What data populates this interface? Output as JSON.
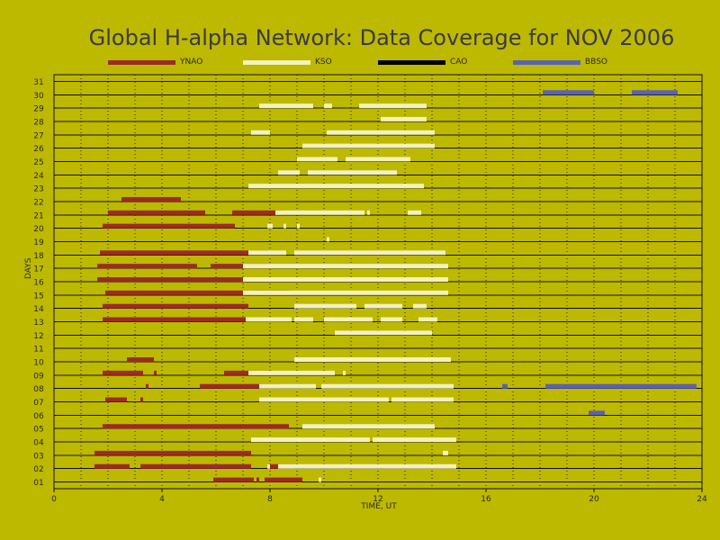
{
  "chart_data": {
    "type": "timeline",
    "title": "Global H-alpha Network: Data Coverage for NOV 2006",
    "xlabel": "TIME, UT",
    "ylabel": "DAYS",
    "xlim": [
      0,
      24
    ],
    "ylim": [
      0.5,
      31.5
    ],
    "xticks": [
      0,
      4,
      8,
      12,
      16,
      20,
      24
    ],
    "day_labels": [
      "01",
      "02",
      "03",
      "04",
      "05",
      "06",
      "07",
      "08",
      "09",
      "10",
      "11",
      "12",
      "13",
      "14",
      "15",
      "16",
      "17",
      "18",
      "19",
      "20",
      "21",
      "22",
      "23",
      "24",
      "25",
      "26",
      "27",
      "28",
      "29",
      "30",
      "31"
    ],
    "grid": true,
    "legend_placement": "top",
    "series": [
      {
        "name": "YNAO",
        "color": "#9e2a26",
        "segments": [
          [
            1,
            5.9,
            7.4
          ],
          [
            1,
            7.5,
            7.6
          ],
          [
            1,
            7.8,
            9.2
          ],
          [
            2,
            1.5,
            2.8
          ],
          [
            2,
            3.2,
            7.3
          ],
          [
            2,
            7.9,
            8.9
          ],
          [
            3,
            1.5,
            7.3
          ],
          [
            5,
            1.8,
            8.7
          ],
          [
            7,
            1.9,
            2.7
          ],
          [
            7,
            3.2,
            3.3
          ],
          [
            8,
            3.4,
            3.5
          ],
          [
            8,
            5.4,
            8.4
          ],
          [
            9,
            1.8,
            3.3
          ],
          [
            9,
            3.7,
            3.8
          ],
          [
            9,
            6.3,
            8.1
          ],
          [
            10,
            2.7,
            3.7
          ],
          [
            13,
            1.8,
            7.1
          ],
          [
            13,
            7.4,
            8.8
          ],
          [
            14,
            1.8,
            7.2
          ],
          [
            15,
            1.9,
            7.2
          ],
          [
            15,
            7.3,
            8.8
          ],
          [
            16,
            1.6,
            7.2
          ],
          [
            17,
            1.6,
            5.3
          ],
          [
            17,
            5.8,
            8.0
          ],
          [
            18,
            1.7,
            7.2
          ],
          [
            18,
            7.3,
            7.9
          ],
          [
            20,
            1.8,
            6.7
          ],
          [
            21,
            2.0,
            5.6
          ],
          [
            21,
            6.6,
            8.5
          ],
          [
            22,
            2.5,
            4.7
          ]
        ]
      },
      {
        "name": "KSO",
        "color": "#f3f1bc",
        "segments": [
          [
            1,
            9.8,
            9.9
          ],
          [
            2,
            7.9,
            8.0
          ],
          [
            2,
            8.3,
            14.9
          ],
          [
            3,
            14.4,
            14.6
          ],
          [
            4,
            7.3,
            11.7
          ],
          [
            4,
            11.8,
            14.9
          ],
          [
            5,
            9.2,
            14.1
          ],
          [
            7,
            7.6,
            12.4
          ],
          [
            7,
            12.5,
            14.8
          ],
          [
            8,
            7.6,
            9.7
          ],
          [
            8,
            9.9,
            14.8
          ],
          [
            9,
            7.2,
            10.4
          ],
          [
            9,
            10.7,
            10.8
          ],
          [
            10,
            8.9,
            14.7
          ],
          [
            12,
            10.4,
            14.0
          ],
          [
            13,
            7.1,
            8.8
          ],
          [
            13,
            8.9,
            9.6
          ],
          [
            13,
            10.0,
            11.8
          ],
          [
            13,
            12.1,
            12.9
          ],
          [
            13,
            13.5,
            14.2
          ],
          [
            14,
            8.9,
            11.2
          ],
          [
            14,
            11.5,
            12.9
          ],
          [
            14,
            13.3,
            13.8
          ],
          [
            15,
            7.0,
            14.6
          ],
          [
            16,
            7.0,
            14.6
          ],
          [
            17,
            7.0,
            14.6
          ],
          [
            18,
            7.2,
            8.6
          ],
          [
            18,
            8.9,
            14.5
          ],
          [
            19,
            10.1,
            10.2
          ],
          [
            20,
            7.9,
            8.1
          ],
          [
            20,
            8.5,
            8.6
          ],
          [
            20,
            9.0,
            9.1
          ],
          [
            21,
            8.2,
            11.5
          ],
          [
            21,
            11.6,
            11.7
          ],
          [
            21,
            13.1,
            13.6
          ],
          [
            23,
            7.2,
            13.7
          ],
          [
            24,
            8.3,
            9.1
          ],
          [
            24,
            9.4,
            12.7
          ],
          [
            25,
            9.0,
            10.5
          ],
          [
            25,
            10.8,
            13.2
          ],
          [
            26,
            9.2,
            14.1
          ],
          [
            27,
            7.3,
            8.0
          ],
          [
            27,
            10.1,
            14.1
          ],
          [
            28,
            12.1,
            13.8
          ],
          [
            29,
            7.6,
            9.6
          ],
          [
            29,
            10.0,
            10.3
          ],
          [
            29,
            11.3,
            13.8
          ]
        ]
      },
      {
        "name": "CAO",
        "color": "#000000",
        "segments": []
      },
      {
        "name": "BBSO",
        "color": "#5b62b3",
        "segments": [
          [
            6,
            19.8,
            20.4
          ],
          [
            8,
            16.6,
            16.8
          ],
          [
            8,
            18.2,
            23.8
          ],
          [
            30,
            18.1,
            20.0
          ],
          [
            30,
            21.4,
            23.1
          ]
        ]
      }
    ]
  }
}
